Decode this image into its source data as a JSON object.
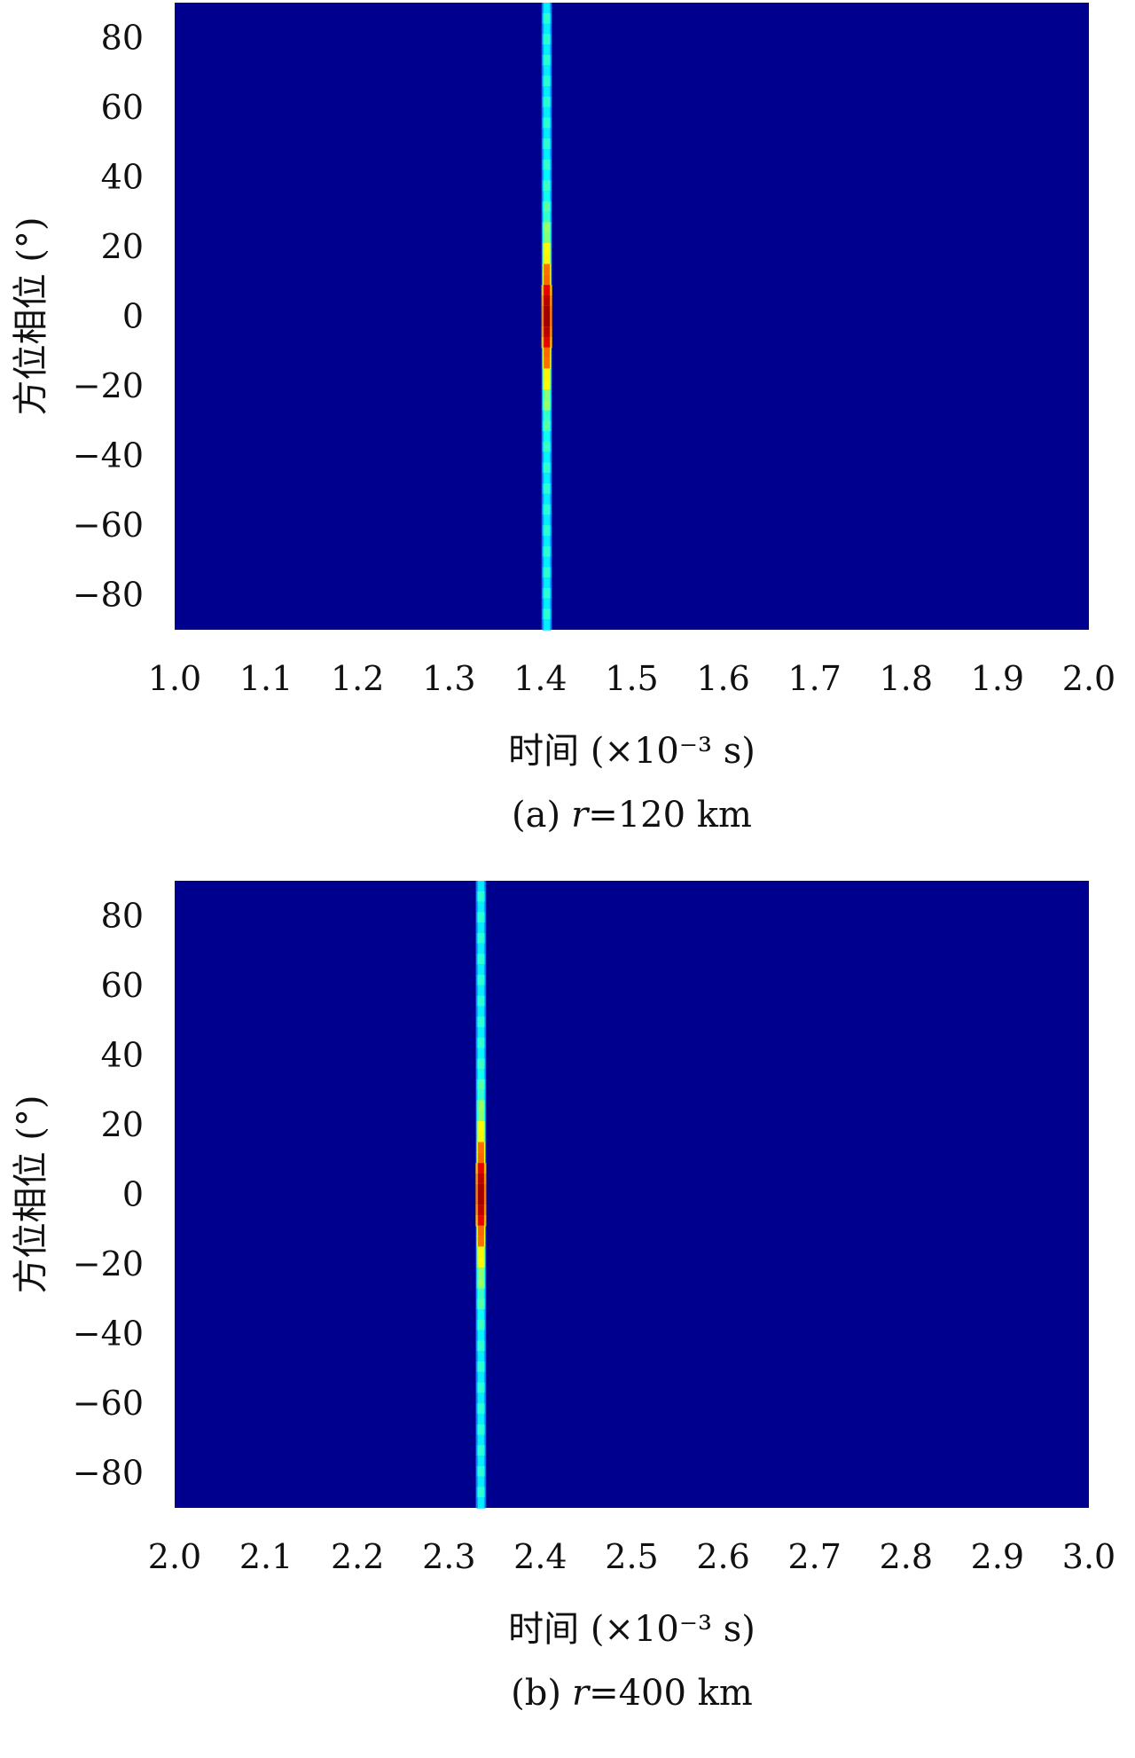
{
  "chart_data": [
    {
      "type": "heatmap",
      "panel": "(a)",
      "caption_prefix": "(a)",
      "caption_var": "r",
      "caption_rest": "=120 km",
      "xlabel": "时间 (×10⁻³ s)",
      "ylabel": "方位相位 (°)",
      "xlim": [
        1.0,
        2.0
      ],
      "ylim": [
        -90,
        90
      ],
      "xticks": [
        "1.0",
        "1.1",
        "1.2",
        "1.3",
        "1.4",
        "1.5",
        "1.6",
        "1.7",
        "1.8",
        "1.9",
        "2.0"
      ],
      "yticks": [
        "80",
        "60",
        "40",
        "20",
        "0",
        "−20",
        "−40",
        "−60",
        "−80"
      ],
      "ytick_values": [
        80,
        60,
        40,
        20,
        0,
        -20,
        -40,
        -60,
        -80
      ],
      "background_color": "#00008f",
      "colormap": "jet",
      "ridge_time": 1.407,
      "peak_phase": 0
    },
    {
      "type": "heatmap",
      "panel": "(b)",
      "caption_prefix": "(b)",
      "caption_var": "r",
      "caption_rest": "=400 km",
      "xlabel": "时间 (×10⁻³ s)",
      "ylabel": "方位相位 (°)",
      "xlim": [
        2.0,
        3.0
      ],
      "ylim": [
        -90,
        90
      ],
      "xticks": [
        "2.0",
        "2.1",
        "2.2",
        "2.3",
        "2.4",
        "2.5",
        "2.6",
        "2.7",
        "2.8",
        "2.9",
        "3.0"
      ],
      "yticks": [
        "80",
        "60",
        "40",
        "20",
        "0",
        "−20",
        "−40",
        "−60",
        "−80"
      ],
      "ytick_values": [
        80,
        60,
        40,
        20,
        0,
        -20,
        -40,
        -60,
        -80
      ],
      "background_color": "#00008f",
      "colormap": "jet",
      "ridge_time": 2.335,
      "peak_phase": 0
    }
  ]
}
